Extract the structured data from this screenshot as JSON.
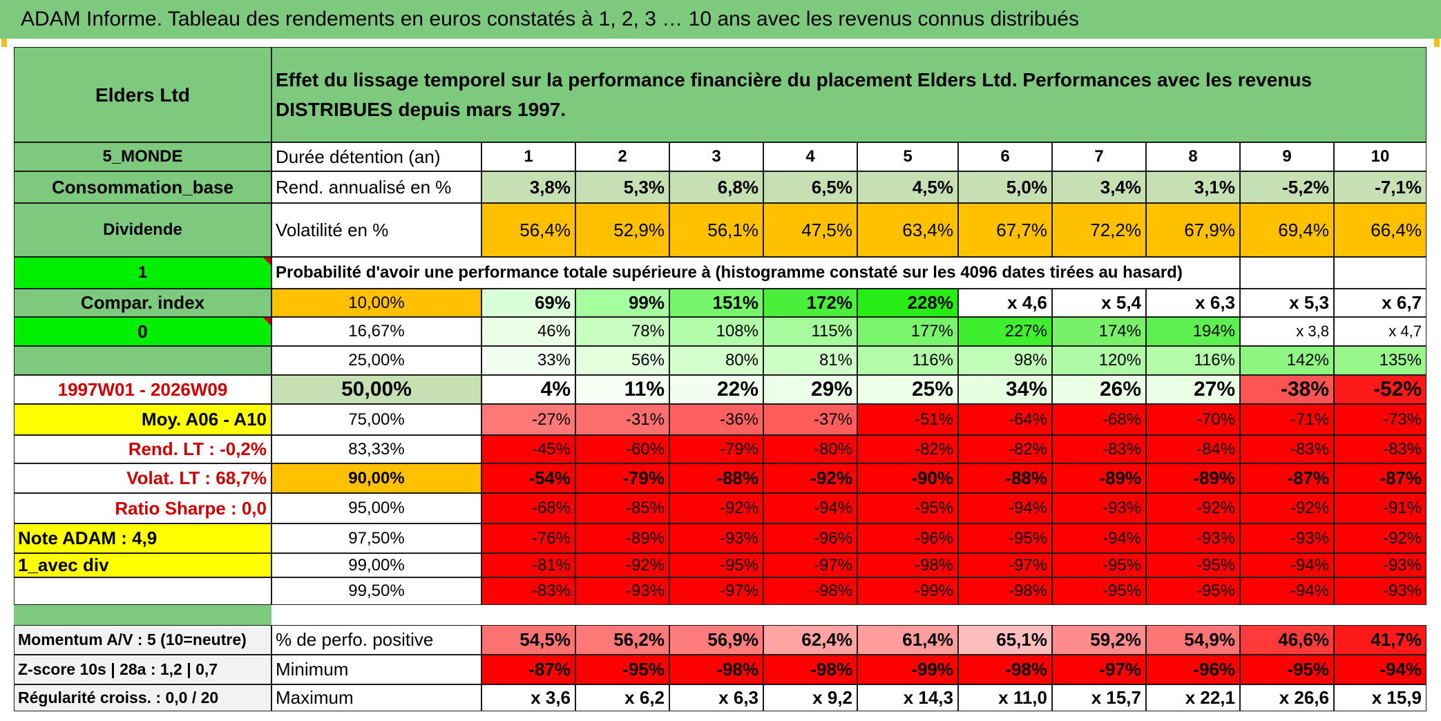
{
  "title": "ADAM Informe. Tableau des rendements en euros constatés à 1, 2, 3 … 10 ans avec les revenus connus distribués",
  "header": {
    "fund": "Elders Ltd",
    "description": "Effet du lissage temporel sur la performance financière du placement Elders Ltd. Performances avec les revenus DISTRIBUES depuis mars 1997."
  },
  "side": {
    "zone": "5_MONDE",
    "sector": "Consommation_base",
    "type": "Dividende",
    "flag1": "1",
    "compar": "Compar. index",
    "flag0": "0",
    "period": "1997W01 - 2026W09",
    "moy": "Moy. A06 - A10",
    "rend_lt": "Rend. LT :    -0,2%",
    "volat_lt": "Volat. LT :    68,7%",
    "sharpe": "Ratio Sharpe :    0,0",
    "note": "Note ADAM : 4,9",
    "avec_div": "1_avec div",
    "momentum": "Momentum A/V : 5 (10=neutre)",
    "zscore": "Z-score 10s | 28a : 1,2 | 0,7",
    "regularite": "Régularité croiss. : 0,0 / 20"
  },
  "table": {
    "years_label": "Durée détention (an)",
    "years": [
      "1",
      "2",
      "3",
      "4",
      "5",
      "6",
      "7",
      "8",
      "9",
      "10"
    ],
    "rend_label": "Rend. annualisé en %",
    "rend": [
      "3,8%",
      "5,3%",
      "6,8%",
      "6,5%",
      "4,5%",
      "5,0%",
      "3,4%",
      "3,1%",
      "-5,2%",
      "-7,1%"
    ],
    "vol_label": "Volatilité en %",
    "vol": [
      "56,4%",
      "52,9%",
      "56,1%",
      "47,5%",
      "63,4%",
      "67,7%",
      "72,2%",
      "67,9%",
      "69,4%",
      "66,4%"
    ],
    "prob_header": "Probabilité d'avoir une performance totale supérieure à (histogramme constaté sur les 4096 dates tirées au hasard)",
    "prob_rows": [
      {
        "p": "10,00%",
        "v": [
          "69%",
          "99%",
          "151%",
          "172%",
          "228%",
          "x 4,6",
          "x 5,4",
          "x 6,3",
          "x 5,3",
          "x 6,7"
        ]
      },
      {
        "p": "16,67%",
        "v": [
          "46%",
          "78%",
          "108%",
          "115%",
          "177%",
          "227%",
          "174%",
          "194%",
          "x 3,8",
          "x 4,7"
        ]
      },
      {
        "p": "25,00%",
        "v": [
          "33%",
          "56%",
          "80%",
          "81%",
          "116%",
          "98%",
          "120%",
          "116%",
          "142%",
          "135%"
        ]
      },
      {
        "p": "50,00%",
        "v": [
          "4%",
          "11%",
          "22%",
          "29%",
          "25%",
          "34%",
          "26%",
          "27%",
          "-38%",
          "-52%"
        ]
      },
      {
        "p": "75,00%",
        "v": [
          "-27%",
          "-31%",
          "-36%",
          "-37%",
          "-51%",
          "-64%",
          "-68%",
          "-70%",
          "-71%",
          "-73%"
        ]
      },
      {
        "p": "83,33%",
        "v": [
          "-45%",
          "-60%",
          "-79%",
          "-80%",
          "-82%",
          "-82%",
          "-83%",
          "-84%",
          "-83%",
          "-83%"
        ]
      },
      {
        "p": "90,00%",
        "v": [
          "-54%",
          "-79%",
          "-88%",
          "-92%",
          "-90%",
          "-88%",
          "-89%",
          "-89%",
          "-87%",
          "-87%"
        ]
      },
      {
        "p": "95,00%",
        "v": [
          "-68%",
          "-85%",
          "-92%",
          "-94%",
          "-95%",
          "-94%",
          "-93%",
          "-92%",
          "-92%",
          "-91%"
        ]
      },
      {
        "p": "97,50%",
        "v": [
          "-76%",
          "-89%",
          "-93%",
          "-96%",
          "-96%",
          "-95%",
          "-94%",
          "-93%",
          "-93%",
          "-92%"
        ]
      },
      {
        "p": "99,00%",
        "v": [
          "-81%",
          "-92%",
          "-95%",
          "-97%",
          "-98%",
          "-97%",
          "-95%",
          "-95%",
          "-94%",
          "-93%"
        ]
      },
      {
        "p": "99,50%",
        "v": [
          "-83%",
          "-93%",
          "-97%",
          "-98%",
          "-99%",
          "-98%",
          "-95%",
          "-95%",
          "-94%",
          "-93%"
        ]
      }
    ],
    "pos_label": "% de perfo. positive",
    "pos": [
      "54,5%",
      "56,2%",
      "56,9%",
      "62,4%",
      "61,4%",
      "65,1%",
      "59,2%",
      "54,9%",
      "46,6%",
      "41,7%"
    ],
    "min_label": "Minimum",
    "min": [
      "-87%",
      "-95%",
      "-98%",
      "-98%",
      "-99%",
      "-98%",
      "-97%",
      "-96%",
      "-95%",
      "-94%"
    ],
    "max_label": "Maximum",
    "max": [
      "x 3,6",
      "x 6,2",
      "x 6,3",
      "x 9,2",
      "x 14,3",
      "x 11,0",
      "x 15,7",
      "x 22,1",
      "x 26,6",
      "x 15,9"
    ]
  },
  "colors": {
    "header_green": "#7dc97e",
    "rend_green": "#c6e0b4",
    "orange": "#ffc000",
    "bright_green": "#00ee00",
    "yellow": "#ffff00",
    "red": "#ff0000"
  }
}
